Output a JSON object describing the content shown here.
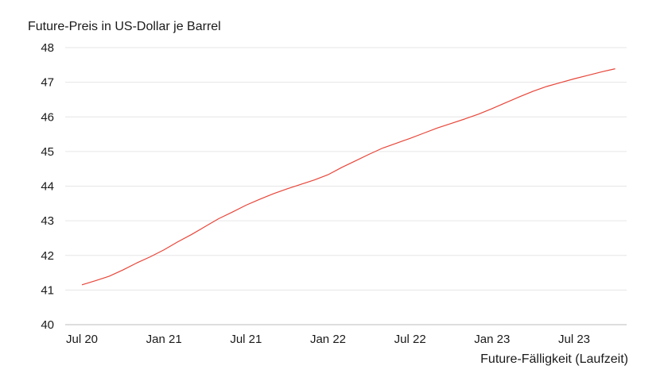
{
  "chart_data": {
    "type": "line",
    "ylabel": "Future-Preis in US-Dollar je Barrel",
    "xlabel": "Future-Fälligkeit (Laufzeit)",
    "ylim": [
      40,
      48
    ],
    "yticks": [
      "40",
      "41",
      "42",
      "43",
      "44",
      "45",
      "46",
      "47",
      "48"
    ],
    "xticks": [
      {
        "label": "Jul 20",
        "date": "2020-07"
      },
      {
        "label": "Jan 21",
        "date": "2021-01"
      },
      {
        "label": "Jul 21",
        "date": "2021-07"
      },
      {
        "label": "Jan 22",
        "date": "2022-01"
      },
      {
        "label": "Jul 22",
        "date": "2022-07"
      },
      {
        "label": "Jan 23",
        "date": "2023-01"
      },
      {
        "label": "Jul 23",
        "date": "2023-07"
      }
    ],
    "grid": true,
    "series": [
      {
        "color": "#e8463a",
        "points": [
          {
            "x": "2020-07",
            "y": 41.15
          },
          {
            "x": "2020-08",
            "y": 41.27
          },
          {
            "x": "2020-09",
            "y": 41.4
          },
          {
            "x": "2020-10",
            "y": 41.58
          },
          {
            "x": "2020-11",
            "y": 41.78
          },
          {
            "x": "2020-12",
            "y": 41.96
          },
          {
            "x": "2021-01",
            "y": 42.16
          },
          {
            "x": "2021-02",
            "y": 42.39
          },
          {
            "x": "2021-03",
            "y": 42.6
          },
          {
            "x": "2021-04",
            "y": 42.83
          },
          {
            "x": "2021-05",
            "y": 43.06
          },
          {
            "x": "2021-06",
            "y": 43.25
          },
          {
            "x": "2021-07",
            "y": 43.45
          },
          {
            "x": "2021-08",
            "y": 43.62
          },
          {
            "x": "2021-09",
            "y": 43.78
          },
          {
            "x": "2021-10",
            "y": 43.92
          },
          {
            "x": "2021-11",
            "y": 44.05
          },
          {
            "x": "2021-12",
            "y": 44.18
          },
          {
            "x": "2022-01",
            "y": 44.33
          },
          {
            "x": "2022-02",
            "y": 44.54
          },
          {
            "x": "2022-03",
            "y": 44.73
          },
          {
            "x": "2022-04",
            "y": 44.92
          },
          {
            "x": "2022-05",
            "y": 45.1
          },
          {
            "x": "2022-06",
            "y": 45.24
          },
          {
            "x": "2022-07",
            "y": 45.38
          },
          {
            "x": "2022-08",
            "y": 45.53
          },
          {
            "x": "2022-09",
            "y": 45.68
          },
          {
            "x": "2022-10",
            "y": 45.81
          },
          {
            "x": "2022-11",
            "y": 45.94
          },
          {
            "x": "2022-12",
            "y": 46.08
          },
          {
            "x": "2023-01",
            "y": 46.24
          },
          {
            "x": "2023-02",
            "y": 46.41
          },
          {
            "x": "2023-03",
            "y": 46.58
          },
          {
            "x": "2023-04",
            "y": 46.74
          },
          {
            "x": "2023-05",
            "y": 46.88
          },
          {
            "x": "2023-06",
            "y": 46.99
          },
          {
            "x": "2023-07",
            "y": 47.1
          },
          {
            "x": "2023-08",
            "y": 47.2
          },
          {
            "x": "2023-09",
            "y": 47.3
          },
          {
            "x": "2023-10",
            "y": 47.39
          }
        ]
      }
    ]
  }
}
